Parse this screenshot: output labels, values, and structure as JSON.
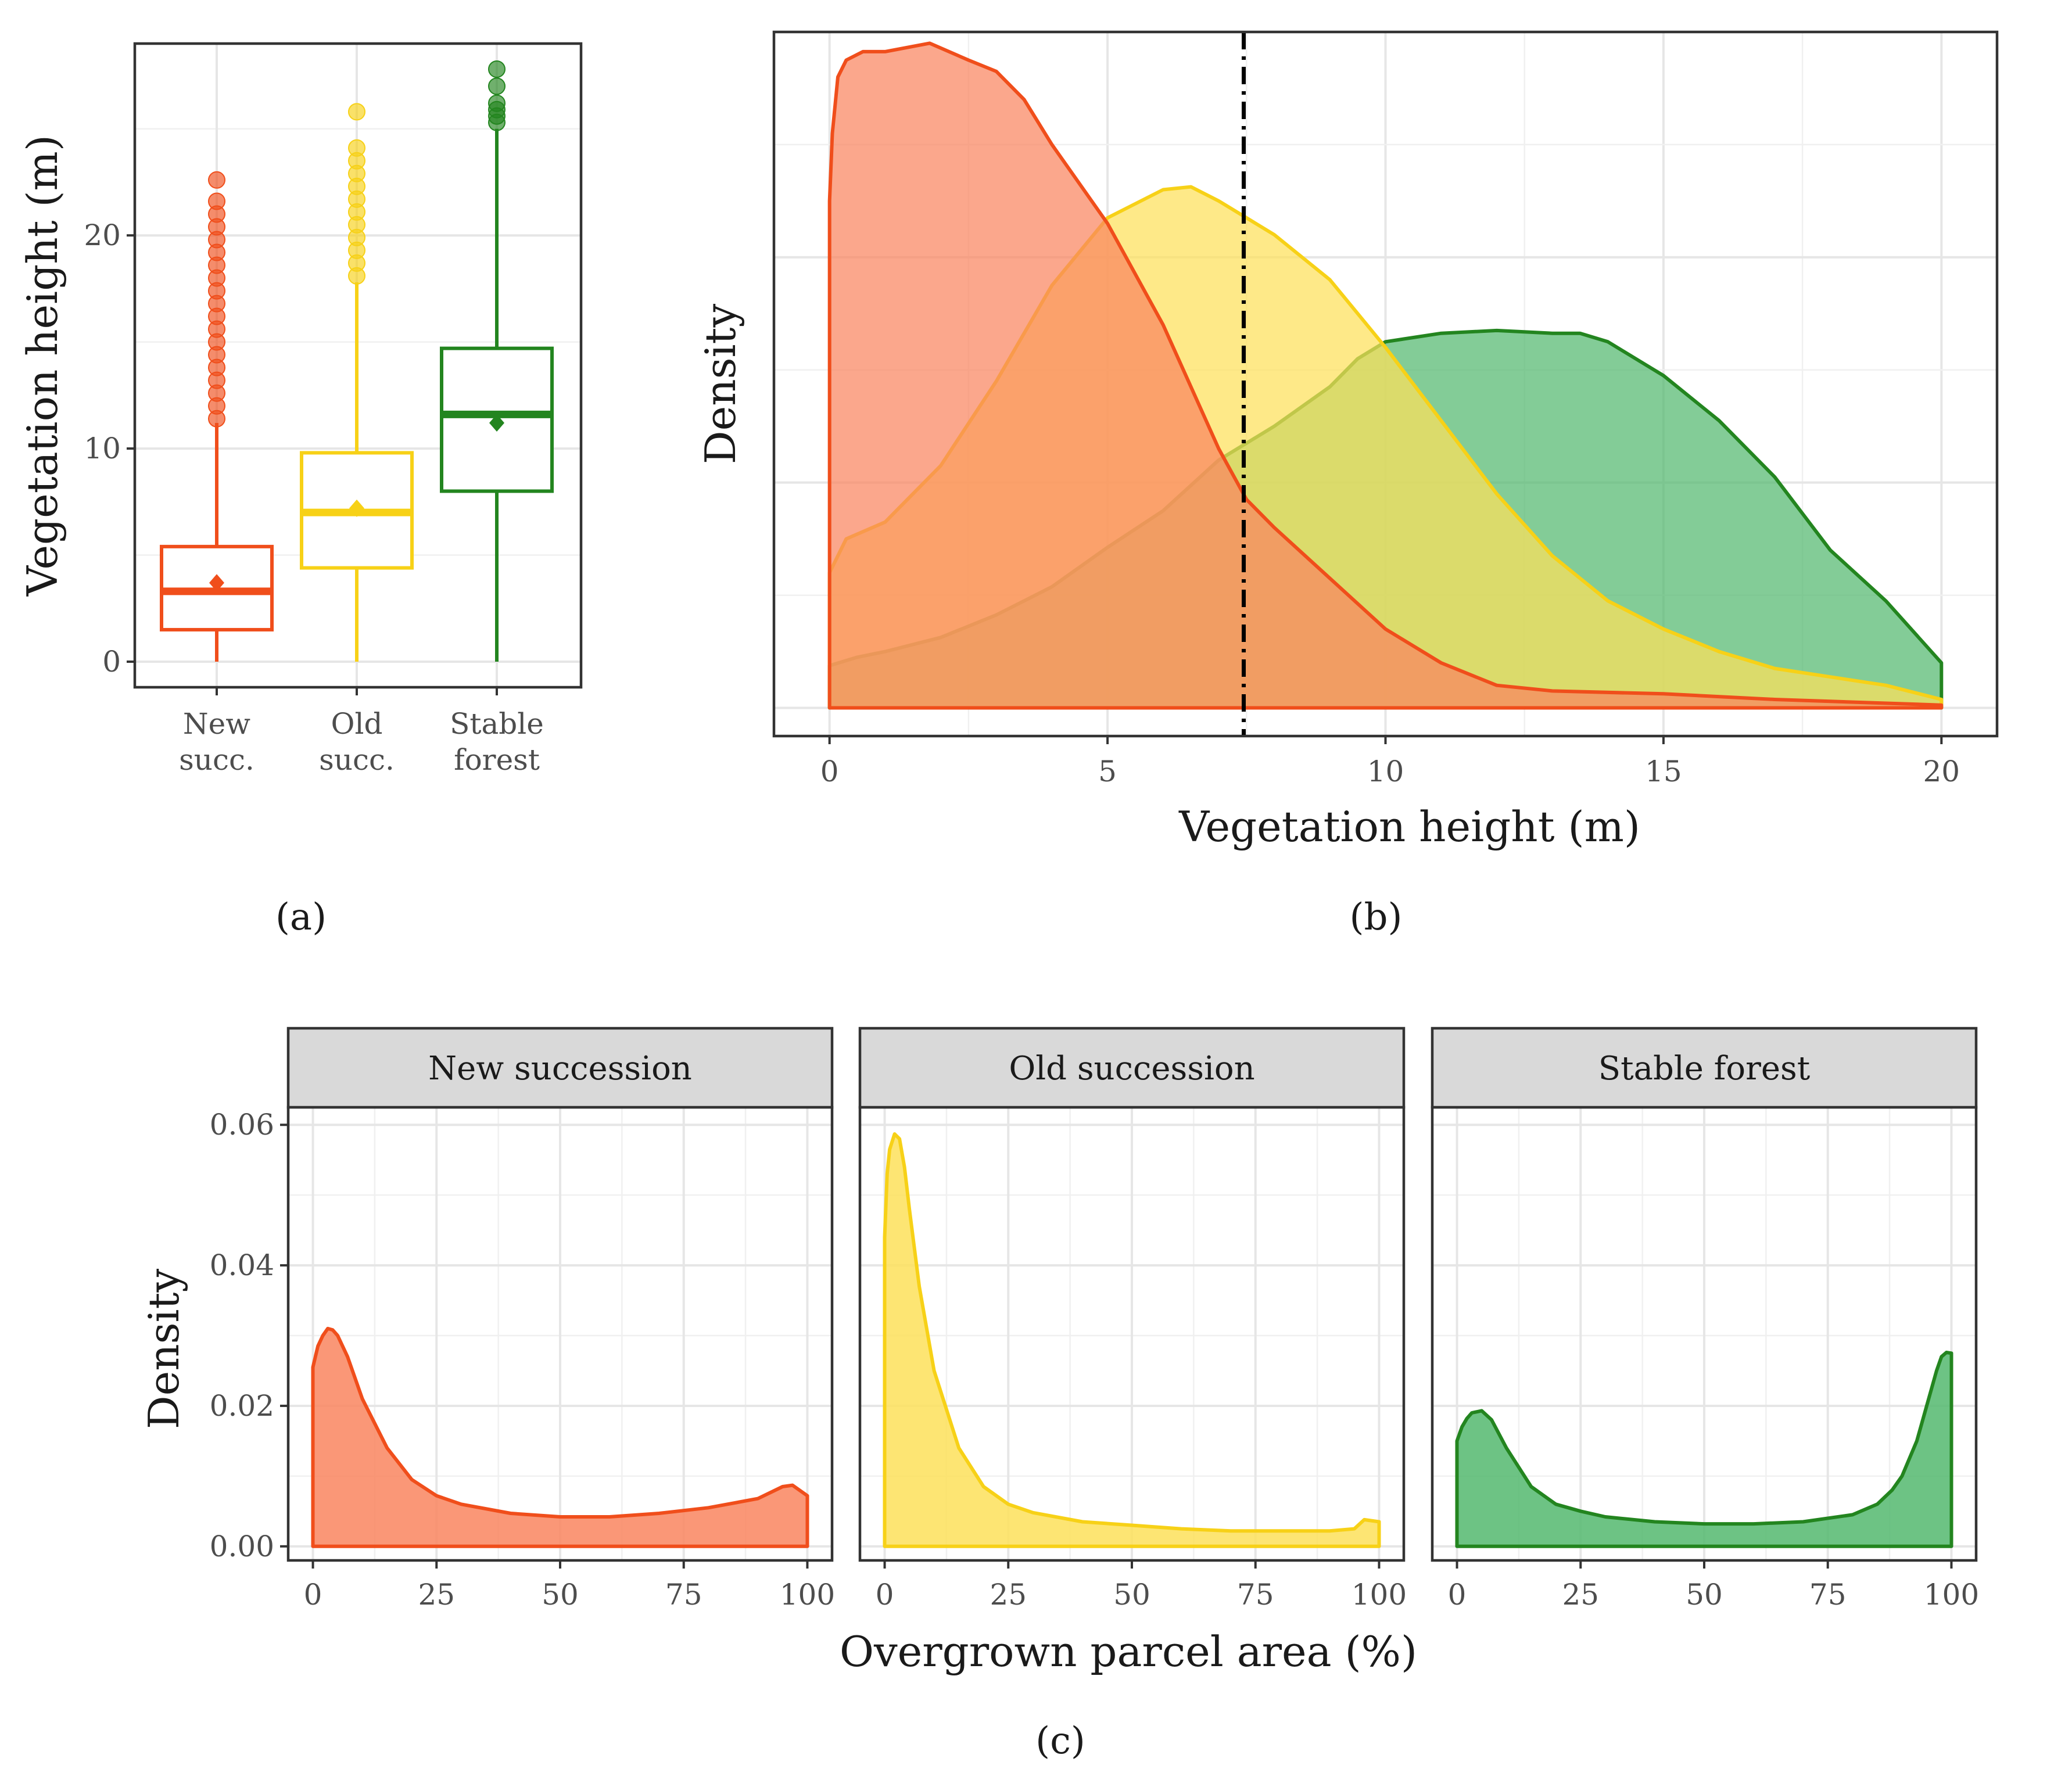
{
  "colors": {
    "new": "#f04e1b",
    "new_fill": "#f9855f",
    "old": "#f7d117",
    "old_fill": "#fde05a",
    "stable": "#23851f",
    "stable_fill": "#53b96f"
  },
  "panel_labels": {
    "a": "(a)",
    "b": "(b)",
    "c": "(c)"
  },
  "chart_data": [
    {
      "id": "a",
      "type": "box",
      "ylabel": "Vegetation height (m)",
      "ylim": [
        -1.2,
        29
      ],
      "yticks": [
        0,
        10,
        20
      ],
      "categories": [
        "New succ.",
        "Old succ.",
        "Stable forest"
      ],
      "category_lines": [
        [
          "New",
          "succ."
        ],
        [
          "Old",
          "succ."
        ],
        [
          "Stable",
          "forest"
        ]
      ],
      "boxes": [
        {
          "group": "New succession",
          "min": 0,
          "q1": 1.5,
          "median": 3.3,
          "q3": 5.4,
          "whisker_high": 11.2,
          "mean": 3.7,
          "outliers": [
            11.4,
            12,
            12.6,
            13.2,
            13.8,
            14.4,
            15,
            15.6,
            16.2,
            16.8,
            17.4,
            18,
            18.6,
            19.2,
            19.8,
            20.4,
            21,
            21.6,
            22.6
          ]
        },
        {
          "group": "Old succession",
          "min": 0,
          "q1": 4.4,
          "median": 7.0,
          "q3": 9.8,
          "whisker_high": 17.8,
          "mean": 7.2,
          "outliers": [
            18.1,
            18.7,
            19.3,
            19.9,
            20.5,
            21.1,
            21.7,
            22.3,
            22.9,
            23.5,
            24.1,
            25.8
          ]
        },
        {
          "group": "Stable forest",
          "min": 0,
          "q1": 8.0,
          "median": 11.6,
          "q3": 14.7,
          "whisker_high": 25.0,
          "mean": 11.2,
          "outliers": [
            25.3,
            25.6,
            25.9,
            26.2,
            27.0,
            27.8
          ]
        }
      ]
    },
    {
      "id": "b",
      "type": "area",
      "xlabel": "Vegetation height (m)",
      "ylabel": "Density",
      "xlim": [
        -1,
        21
      ],
      "xticks": [
        0,
        5,
        10,
        15,
        20
      ],
      "ylim": [
        -0.005,
        0.12
      ],
      "reference_line_x": 7.45,
      "series": [
        {
          "name": "Stable forest",
          "color_key": "stable",
          "x": [
            0,
            0.5,
            1,
            2,
            3,
            4,
            5,
            6,
            7,
            8,
            9,
            9.5,
            10,
            11,
            12,
            13,
            13.5,
            14,
            15,
            16,
            17,
            18,
            19,
            20
          ],
          "y": [
            0.0075,
            0.009,
            0.01,
            0.0125,
            0.0165,
            0.0215,
            0.0285,
            0.035,
            0.044,
            0.05,
            0.057,
            0.062,
            0.065,
            0.0665,
            0.067,
            0.0665,
            0.0665,
            0.065,
            0.059,
            0.051,
            0.041,
            0.028,
            0.019,
            0.008
          ]
        },
        {
          "name": "Old succession",
          "color_key": "old",
          "x": [
            0,
            0.3,
            1,
            2,
            3,
            4,
            5,
            6,
            6.5,
            7,
            8,
            9,
            10,
            11,
            12,
            13,
            14,
            15,
            16,
            17,
            18,
            19,
            20
          ],
          "y": [
            0.024,
            0.03,
            0.033,
            0.043,
            0.058,
            0.075,
            0.087,
            0.092,
            0.0925,
            0.09,
            0.084,
            0.076,
            0.064,
            0.051,
            0.038,
            0.027,
            0.019,
            0.014,
            0.01,
            0.007,
            0.0055,
            0.004,
            0.0015
          ]
        },
        {
          "name": "New succession",
          "color_key": "new",
          "x": [
            0,
            0.05,
            0.15,
            0.3,
            0.6,
            1,
            1.8,
            2.5,
            3,
            3.5,
            4,
            5,
            6,
            7,
            7.5,
            8,
            9,
            10,
            11,
            12,
            13,
            15,
            17,
            20
          ],
          "y": [
            0.09,
            0.102,
            0.112,
            0.115,
            0.1165,
            0.1165,
            0.118,
            0.115,
            0.113,
            0.108,
            0.1,
            0.086,
            0.068,
            0.046,
            0.037,
            0.032,
            0.023,
            0.014,
            0.008,
            0.004,
            0.003,
            0.0025,
            0.0015,
            0.0005
          ]
        }
      ]
    },
    {
      "id": "c",
      "type": "area",
      "xlabel": "Overgrown parcel area (%)",
      "ylabel": "Density",
      "xlim": [
        -5,
        105
      ],
      "xticks": [
        0,
        25,
        50,
        75,
        100
      ],
      "ylim": [
        -0.002,
        0.0625
      ],
      "yticks": [
        0.0,
        0.02,
        0.04,
        0.06
      ],
      "ytick_labels": [
        "0.00",
        "0.02",
        "0.04",
        "0.06"
      ],
      "facets": [
        {
          "title": "New succession",
          "color_key": "new",
          "x": [
            0,
            1,
            2,
            3,
            4,
            5,
            7,
            10,
            15,
            20,
            25,
            30,
            40,
            50,
            60,
            70,
            80,
            90,
            95,
            97,
            100
          ],
          "y": [
            0.0255,
            0.0285,
            0.03,
            0.031,
            0.0308,
            0.03,
            0.027,
            0.021,
            0.014,
            0.0095,
            0.0072,
            0.006,
            0.0047,
            0.0042,
            0.0042,
            0.0047,
            0.0055,
            0.0068,
            0.0085,
            0.0087,
            0.0072
          ]
        },
        {
          "title": "Old succession",
          "color_key": "old",
          "x": [
            0,
            0.5,
            1,
            2,
            3,
            4,
            5,
            7,
            10,
            15,
            20,
            25,
            30,
            40,
            50,
            60,
            70,
            80,
            90,
            95,
            97,
            100
          ],
          "y": [
            0.044,
            0.053,
            0.0565,
            0.0587,
            0.058,
            0.054,
            0.048,
            0.037,
            0.025,
            0.014,
            0.0085,
            0.006,
            0.0048,
            0.0035,
            0.003,
            0.0025,
            0.0022,
            0.0022,
            0.0022,
            0.0025,
            0.0038,
            0.0035
          ]
        },
        {
          "title": "Stable forest",
          "color_key": "stable",
          "x": [
            0,
            1,
            2,
            3,
            5,
            7,
            10,
            15,
            20,
            25,
            30,
            40,
            50,
            60,
            70,
            80,
            85,
            88,
            90,
            93,
            95,
            97,
            98,
            99,
            100
          ],
          "y": [
            0.015,
            0.017,
            0.0182,
            0.019,
            0.0193,
            0.018,
            0.014,
            0.0085,
            0.006,
            0.005,
            0.0042,
            0.0035,
            0.0032,
            0.0032,
            0.0035,
            0.0045,
            0.006,
            0.008,
            0.01,
            0.015,
            0.02,
            0.025,
            0.027,
            0.0276,
            0.0275
          ]
        }
      ]
    }
  ]
}
